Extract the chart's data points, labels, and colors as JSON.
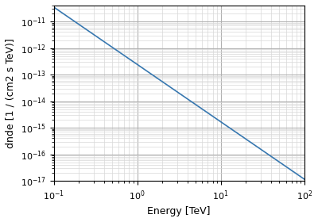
{
  "title": "",
  "xlabel": "Energy [TeV]",
  "ylabel": "dnde [1 / (cm2 s TeV)]",
  "xlim": [
    0.1,
    100
  ],
  "ylim": [
    1e-17,
    4e-11
  ],
  "line_color": "#3878b0",
  "line_width": 1.2,
  "amplitude": 3.5e-11,
  "reference": 0.1,
  "index": 2.0,
  "figsize": [
    4.0,
    2.8
  ],
  "dpi": 100,
  "grid_major_color": "#b0b0b0",
  "grid_minor_color": "#d8d8d8",
  "background_color": "#ffffff",
  "label_fontsize": 9,
  "tick_fontsize": 8
}
